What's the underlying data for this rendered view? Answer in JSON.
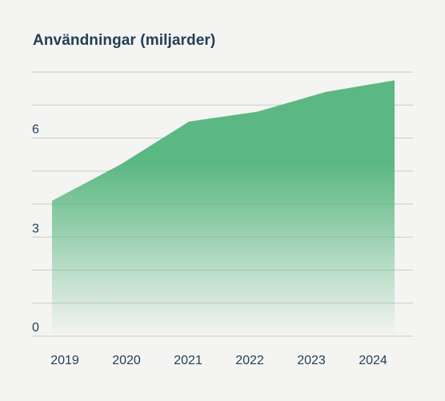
{
  "chart_data": {
    "type": "area",
    "title": "Användningar (miljarder)",
    "xlabel": "",
    "ylabel": "",
    "categories": [
      "2019",
      "2020",
      "2021",
      "2022",
      "2023",
      "2024"
    ],
    "series": [
      {
        "values": [
          4.1,
          5.2,
          6.5,
          6.8,
          7.4,
          7.75
        ]
      }
    ],
    "ylim": [
      0,
      8
    ],
    "yticks": [
      0,
      3,
      6
    ],
    "grid": true,
    "legend": "none",
    "colors": {
      "area": "#5cb883",
      "grid": "#c9cccb",
      "text": "#233f55",
      "background": "#f4f4f2"
    }
  }
}
